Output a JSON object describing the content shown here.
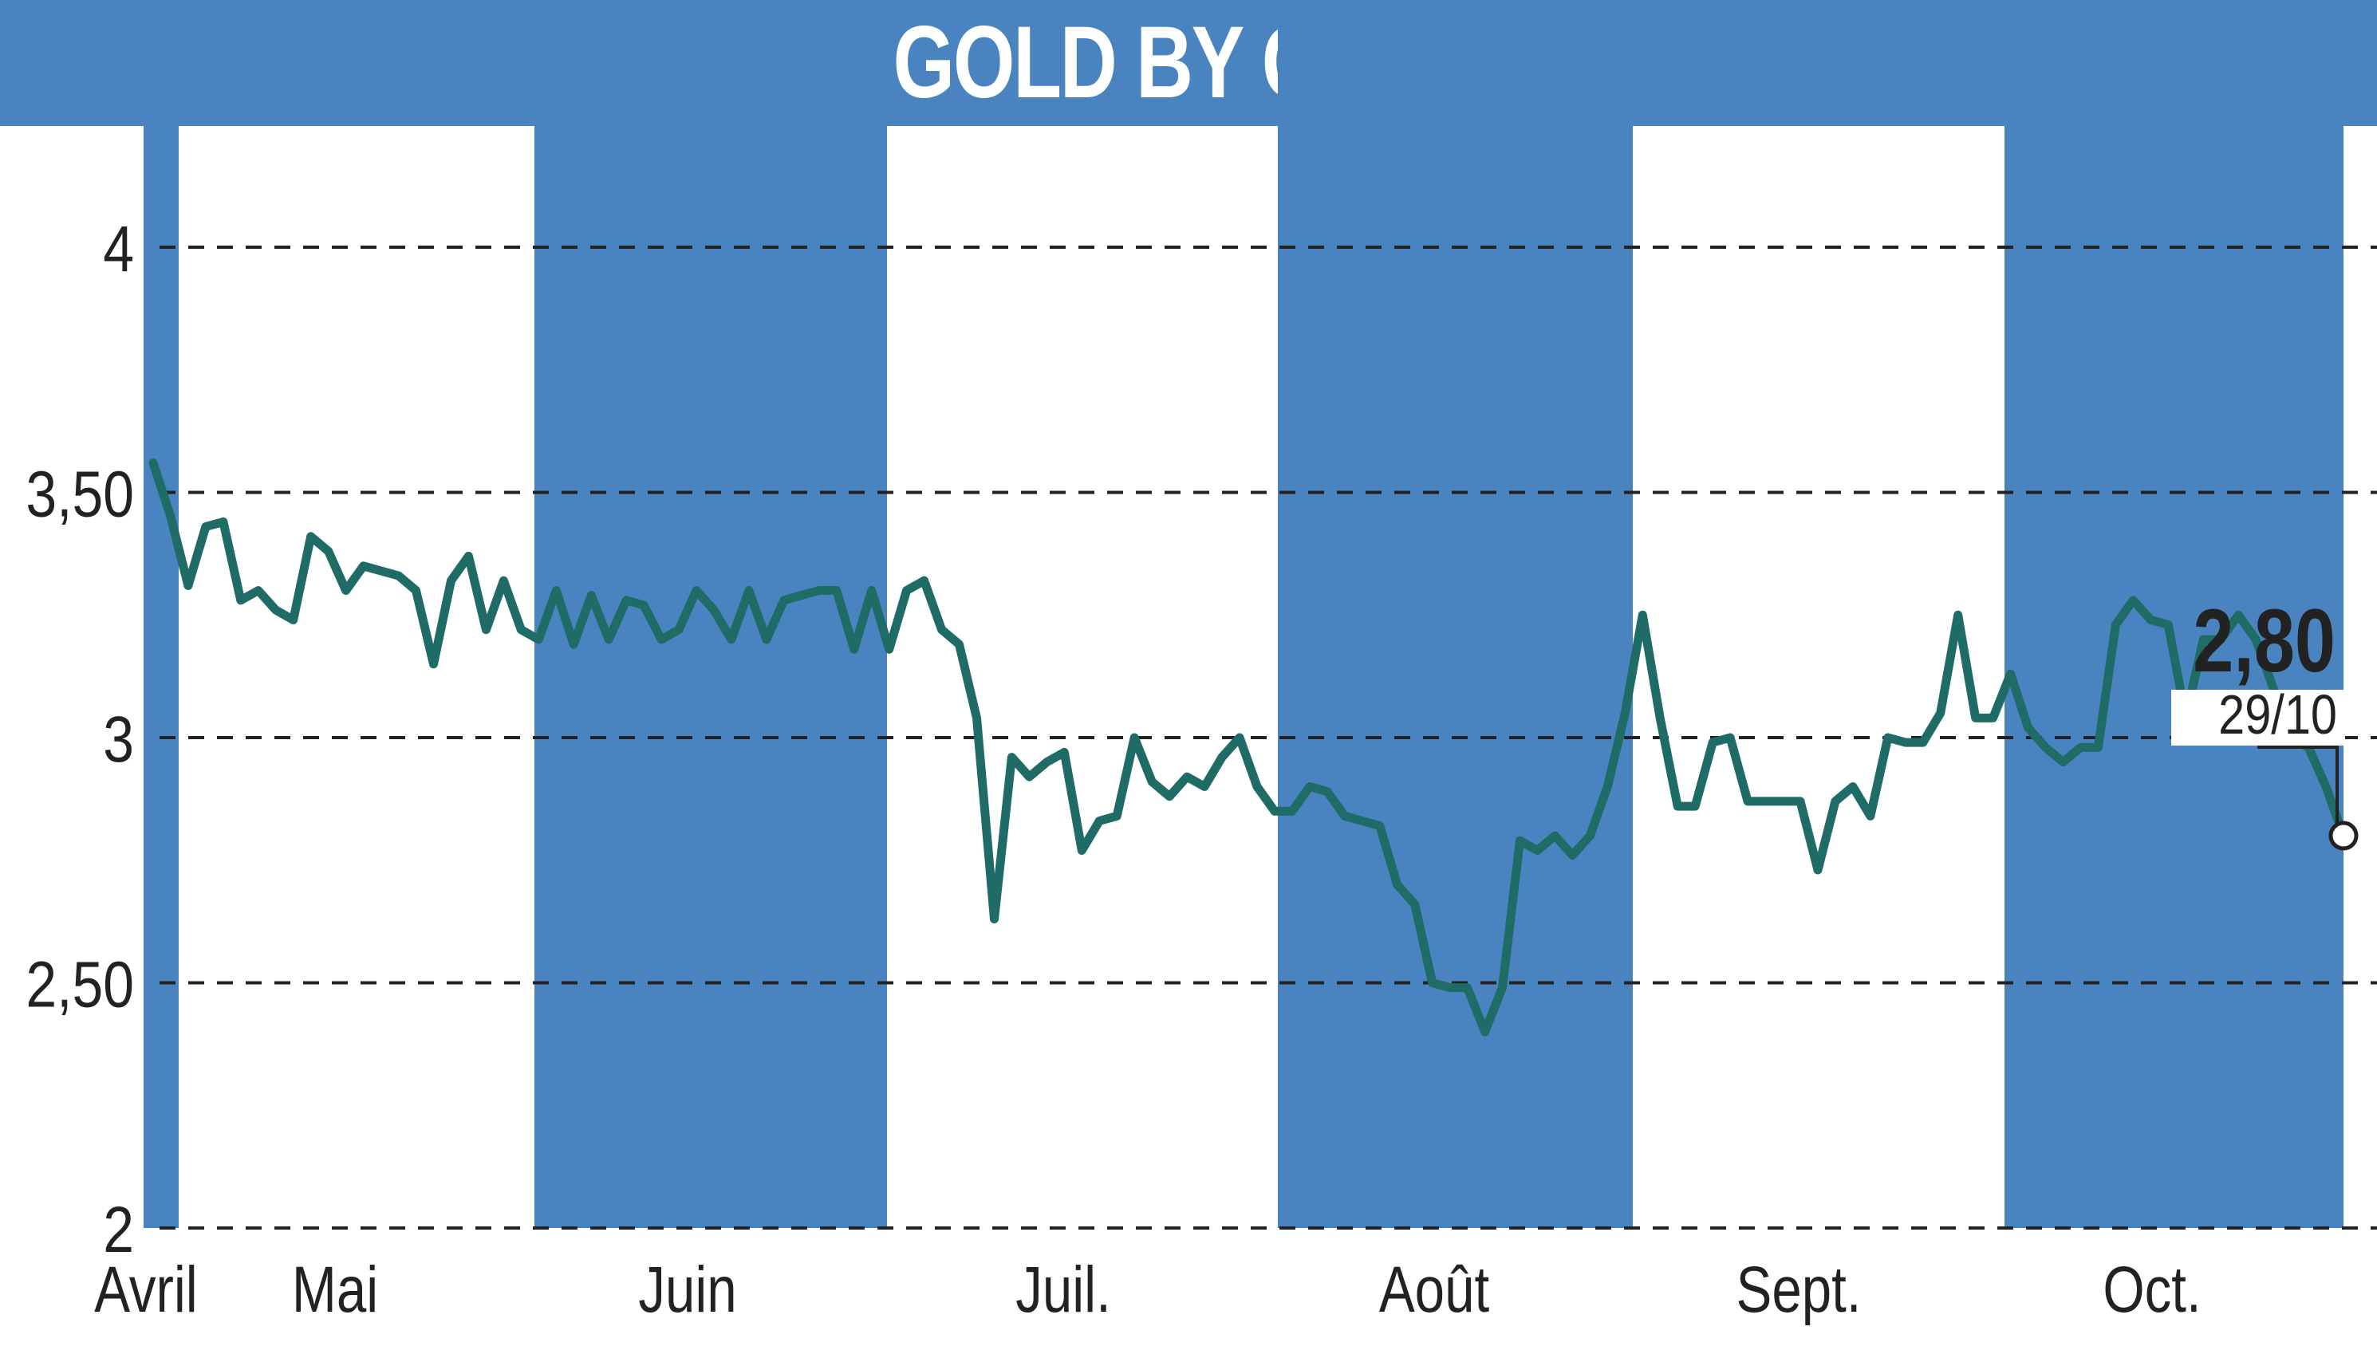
{
  "header": {
    "title": "GOLD BY GOLD"
  },
  "colors": {
    "header": "#4a84c0",
    "band": "#4a84c0",
    "line": "#1f6b66",
    "grid": "#222222"
  },
  "chart_data": {
    "type": "line",
    "title": "GOLD BY GOLD",
    "ylim": [
      2,
      4
    ],
    "yticks": [
      2,
      2.5,
      3,
      3.5,
      4
    ],
    "ytick_labels": [
      "2",
      "2,50",
      "3",
      "3,50",
      "4"
    ],
    "grid": "dashed horizontal",
    "months": [
      "Avril",
      "Mai",
      "Juin",
      "Juil.",
      "Août",
      "Sept.",
      "Oct."
    ],
    "shaded_months": [
      "Avril",
      "Juin",
      "Août",
      "Oct."
    ],
    "last_value_label": "2,80",
    "last_date_label": "29/10",
    "series": [
      {
        "values": [
          3.56,
          3.45,
          3.31,
          3.43,
          3.44,
          3.28,
          3.3,
          3.26,
          3.24,
          3.41,
          3.38,
          3.3,
          3.35,
          3.34,
          3.33,
          3.3,
          3.15,
          3.32,
          3.37,
          3.22,
          3.32,
          3.22,
          3.2,
          3.3,
          3.19,
          3.29,
          3.2,
          3.28,
          3.27,
          3.2,
          3.22,
          3.3,
          3.26,
          3.2,
          3.3,
          3.2,
          3.28,
          3.29,
          3.3,
          3.3,
          3.18,
          3.3,
          3.18,
          3.3,
          3.32,
          3.22,
          3.19,
          3.04,
          2.63,
          2.96,
          2.92,
          2.95,
          2.97,
          2.77,
          2.83,
          2.84,
          3.0,
          2.91,
          2.88,
          2.92,
          2.9,
          2.96,
          3.0,
          2.9,
          2.85,
          2.85,
          2.9,
          2.89,
          2.84,
          2.83,
          2.82,
          2.7,
          2.66,
          2.5,
          2.49,
          2.49,
          2.4,
          2.49,
          2.79,
          2.77,
          2.8,
          2.76,
          2.8,
          2.9,
          3.05,
          3.25,
          3.04,
          2.86,
          2.86,
          2.99,
          3.0,
          2.87,
          2.87,
          2.87,
          2.87,
          2.73,
          2.87,
          2.9,
          2.84,
          3.0,
          2.99,
          2.99,
          3.05,
          3.25,
          3.04,
          3.04,
          3.13,
          3.02,
          2.98,
          2.95,
          2.98,
          2.98,
          3.23,
          3.28,
          3.24,
          3.23,
          3.04,
          3.2,
          3.2,
          3.25,
          3.2,
          3.1,
          3.0,
          2.98,
          2.9,
          2.8
        ]
      }
    ]
  }
}
